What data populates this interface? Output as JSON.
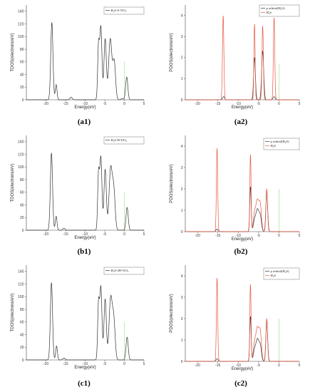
{
  "chart_data": [
    {
      "id": "a1",
      "type": "line",
      "panel_label": "(a1)",
      "xlabel": "Energy(eV)",
      "ylabel": "TDOS(electrons/eV)",
      "xlim": [
        -25,
        5
      ],
      "ylim": [
        0,
        150
      ],
      "xticks": [
        -20,
        -15,
        -10,
        -5,
        0,
        5
      ],
      "yticks": [
        0,
        20,
        40,
        60,
        80,
        100,
        120,
        140
      ],
      "fermi_level": 0,
      "fermi_height": 60,
      "legend": {
        "position": "top-right"
      },
      "series": [
        {
          "name": "H₂S-S-TiO₂",
          "color": "#333333",
          "peaks": [
            [
              -18.5,
              122,
              0.28
            ],
            [
              -17.4,
              24,
              0.22
            ],
            [
              -13.6,
              4,
              0.3
            ],
            [
              -6.6,
              82,
              0.22
            ],
            [
              -6.0,
              115,
              0.28
            ],
            [
              -4.9,
              96,
              0.3
            ],
            [
              -3.6,
              96,
              0.4
            ],
            [
              -2.6,
              60,
              0.35
            ],
            [
              -0.6,
              2,
              0.25
            ],
            [
              0.6,
              36,
              0.28
            ]
          ]
        }
      ]
    },
    {
      "id": "a2",
      "type": "line",
      "panel_label": "(a2)",
      "xlabel": "Energy(eV)",
      "ylabel": "PDOS(electrons/eV)",
      "xlim": [
        -23,
        5
      ],
      "ylim": [
        0,
        4.5
      ],
      "xticks": [
        -20,
        -15,
        -10,
        -5,
        0,
        5
      ],
      "yticks": [
        0,
        1,
        2,
        3,
        4
      ],
      "fermi_level": 0,
      "fermi_height": 1.7,
      "legend": {
        "position": "top-right"
      },
      "series": [
        {
          "name": "p orbital(H₂S)",
          "color": "#333333",
          "peaks": [
            [
              -13.6,
              0.15,
              0.25
            ],
            [
              -6.0,
              2.0,
              0.22
            ],
            [
              -4.0,
              2.3,
              0.25
            ],
            [
              -1.2,
              0.15,
              0.25
            ]
          ]
        },
        {
          "name": "H₂S",
          "color": "#e8553f",
          "peaks": [
            [
              -13.7,
              4.0,
              0.17
            ],
            [
              -6.0,
              3.6,
              0.15
            ],
            [
              -4.0,
              3.5,
              0.17
            ],
            [
              -1.2,
              3.9,
              0.17
            ]
          ]
        }
      ]
    },
    {
      "id": "b1",
      "type": "line",
      "panel_label": "(b1)",
      "xlabel": "Energy(eV)",
      "ylabel": "TDOS(electrons/eV)",
      "xlim": [
        -25,
        5
      ],
      "ylim": [
        0,
        150
      ],
      "xticks": [
        -20,
        -15,
        -10,
        -5,
        0,
        5
      ],
      "yticks": [
        0,
        20,
        40,
        60,
        80,
        100,
        120,
        140
      ],
      "fermi_level": 0,
      "fermi_height": 60,
      "legend": {
        "position": "top-right"
      },
      "series": [
        {
          "name": "H₂S-H-TiO₂",
          "color": "#333333",
          "peaks": [
            [
              -18.6,
              122,
              0.28
            ],
            [
              -17.4,
              22,
              0.22
            ],
            [
              -15.4,
              3,
              0.3
            ],
            [
              -6.6,
              85,
              0.22
            ],
            [
              -6.0,
              115,
              0.28
            ],
            [
              -4.9,
              96,
              0.3
            ],
            [
              -3.5,
              97,
              0.4
            ],
            [
              -2.7,
              60,
              0.35
            ],
            [
              0.7,
              36,
              0.28
            ]
          ]
        }
      ]
    },
    {
      "id": "b2",
      "type": "line",
      "panel_label": "(b2)",
      "xlabel": "Energy(eV)",
      "ylabel": "PDOS(electrons/eV)",
      "xlim": [
        -23,
        5
      ],
      "ylim": [
        0,
        4.5
      ],
      "xticks": [
        -20,
        -15,
        -10,
        -5,
        0,
        5
      ],
      "yticks": [
        0,
        1,
        2,
        3,
        4
      ],
      "fermi_level": 0,
      "fermi_height": 2.0,
      "legend": {
        "position": "top-right"
      },
      "series": [
        {
          "name": "p orbital(H₂S)",
          "color": "#333333",
          "peaks": [
            [
              -15.2,
              0.12,
              0.25
            ],
            [
              -7.0,
              2.1,
              0.18
            ],
            [
              -6.0,
              0.5,
              0.3
            ],
            [
              -5.3,
              1.0,
              0.35
            ],
            [
              -4.6,
              0.7,
              0.3
            ],
            [
              -3.0,
              1.9,
              0.22
            ]
          ]
        },
        {
          "name": "H₂S",
          "color": "#e8553f",
          "peaks": [
            [
              -15.2,
              3.9,
              0.16
            ],
            [
              -7.0,
              3.6,
              0.15
            ],
            [
              -6.0,
              0.8,
              0.3
            ],
            [
              -5.3,
              1.4,
              0.35
            ],
            [
              -4.6,
              1.2,
              0.3
            ],
            [
              -3.0,
              2.0,
              0.2
            ]
          ]
        }
      ]
    },
    {
      "id": "c1",
      "type": "line",
      "panel_label": "(c1)",
      "xlabel": "Energy(eV)",
      "ylabel": "TDOS(electrons/eV)",
      "xlim": [
        -25,
        5
      ],
      "ylim": [
        0,
        150
      ],
      "xticks": [
        -20,
        -15,
        -10,
        -5,
        0,
        5
      ],
      "yticks": [
        0,
        20,
        40,
        60,
        80,
        100,
        120,
        140
      ],
      "fermi_level": 0,
      "fermi_height": 60,
      "legend": {
        "position": "top-right"
      },
      "series": [
        {
          "name": "H₂S-2H-TiO₂",
          "color": "#333333",
          "peaks": [
            [
              -18.6,
              122,
              0.28
            ],
            [
              -17.3,
              22,
              0.22
            ],
            [
              -15.4,
              3,
              0.3
            ],
            [
              -6.6,
              85,
              0.22
            ],
            [
              -6.0,
              115,
              0.28
            ],
            [
              -4.9,
              96,
              0.3
            ],
            [
              -3.5,
              97,
              0.4
            ],
            [
              -2.7,
              60,
              0.35
            ],
            [
              0.7,
              36,
              0.28
            ]
          ]
        }
      ]
    },
    {
      "id": "c2",
      "type": "line",
      "panel_label": "(c2)",
      "xlabel": "Energy(eV)",
      "ylabel": "PDOS(electrons/eV)",
      "xlim": [
        -23,
        5
      ],
      "ylim": [
        0,
        4.5
      ],
      "xticks": [
        -20,
        -15,
        -10,
        -5,
        0,
        5
      ],
      "yticks": [
        0,
        1,
        2,
        3,
        4
      ],
      "fermi_level": 0,
      "fermi_height": 2.0,
      "legend": {
        "position": "top-right"
      },
      "series": [
        {
          "name": "p orbital(H₂S)",
          "color": "#333333",
          "peaks": [
            [
              -15.2,
              0.12,
              0.25
            ],
            [
              -7.0,
              2.1,
              0.18
            ],
            [
              -6.0,
              0.5,
              0.3
            ],
            [
              -5.3,
              1.0,
              0.35
            ],
            [
              -4.6,
              0.7,
              0.3
            ],
            [
              -3.0,
              1.9,
              0.22
            ]
          ]
        },
        {
          "name": "H₂S",
          "color": "#e8553f",
          "peaks": [
            [
              -15.2,
              3.9,
              0.16
            ],
            [
              -7.0,
              3.6,
              0.15
            ],
            [
              -6.0,
              0.8,
              0.3
            ],
            [
              -5.3,
              1.5,
              0.35
            ],
            [
              -4.6,
              1.3,
              0.3
            ],
            [
              -3.0,
              2.0,
              0.2
            ]
          ]
        }
      ]
    }
  ],
  "colors": {
    "fermi_line": "#9be07a",
    "axis": "#444444",
    "pdos_series": "#e8553f"
  }
}
